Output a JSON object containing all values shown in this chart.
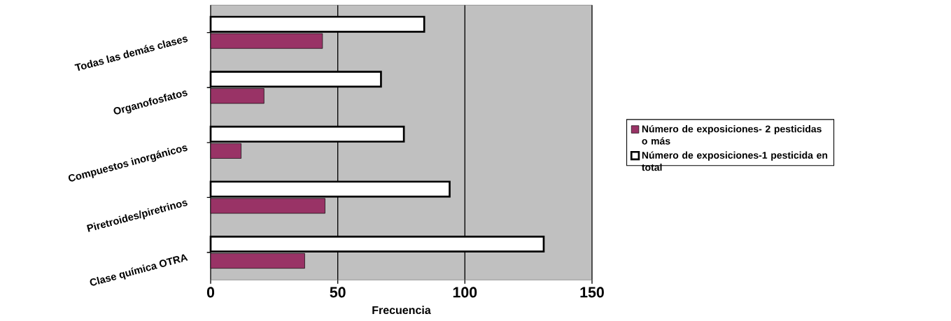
{
  "chart_data": {
    "type": "bar",
    "orientation": "horizontal",
    "xlabel": "Frecuencia",
    "categories": [
      "Todas las demás clases",
      "Organofosfatos",
      "Compuestos inorgánicos",
      "Piretroides/piretrinos",
      "Clase química OTRA"
    ],
    "series": [
      {
        "name": "Número de exposiciones- 2 pesticidas o más",
        "color": "#993366",
        "values": [
          44,
          21,
          12,
          45,
          37
        ]
      },
      {
        "name": "Número de exposiciones-1 pesticida en total",
        "color": "#ffffff",
        "values": [
          84,
          67,
          76,
          94,
          131
        ]
      }
    ],
    "xlim": [
      0,
      150
    ],
    "xticks": [
      0,
      50,
      100,
      150
    ],
    "grid": "x",
    "legend": "right"
  }
}
